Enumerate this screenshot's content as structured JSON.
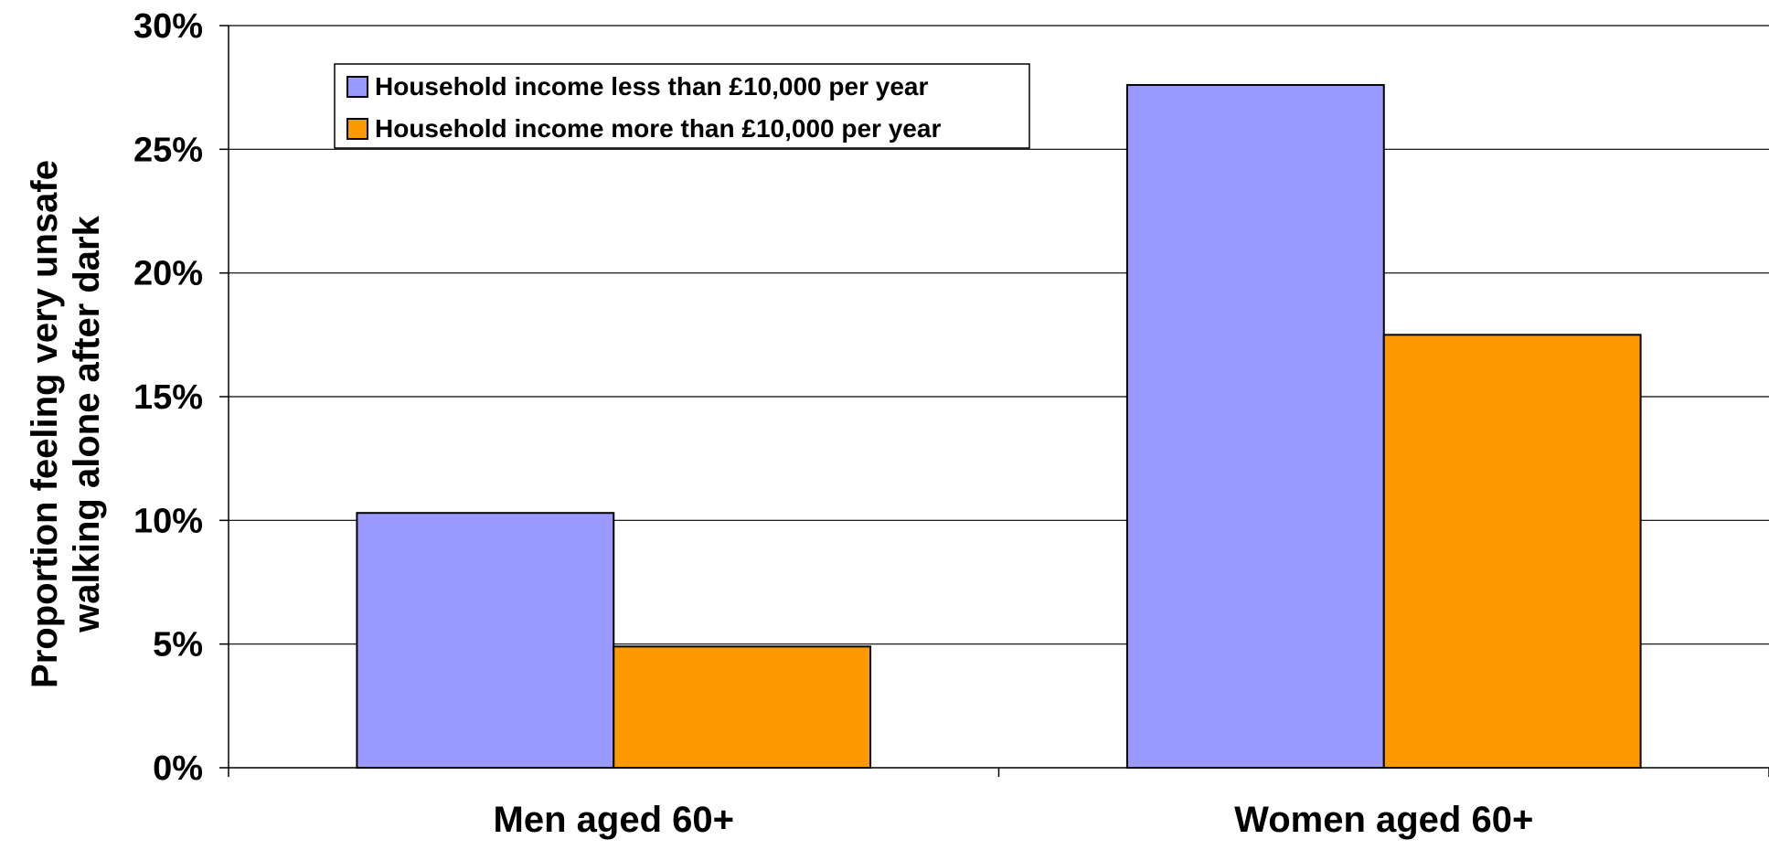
{
  "chart_data": {
    "type": "bar",
    "title": "",
    "xlabel": "",
    "ylabel_lines": [
      "Proportion feeling very unsafe",
      "walking alone after dark"
    ],
    "categories": [
      "Men aged 60+",
      "Women aged 60+"
    ],
    "series": [
      {
        "name": "Household income less than £10,000 per year",
        "values": [
          10.3,
          27.6
        ],
        "color": "#9999FF"
      },
      {
        "name": "Household income more than £10,000 per year",
        "values": [
          4.9,
          17.5
        ],
        "color": "#FF9900"
      }
    ],
    "ylim": [
      0,
      30
    ],
    "yticks": [
      0,
      5,
      10,
      15,
      20,
      25,
      30
    ],
    "ytick_labels": [
      "0%",
      "5%",
      "10%",
      "15%",
      "20%",
      "25%",
      "30%"
    ],
    "grid": true,
    "legend_position": "top-left"
  }
}
